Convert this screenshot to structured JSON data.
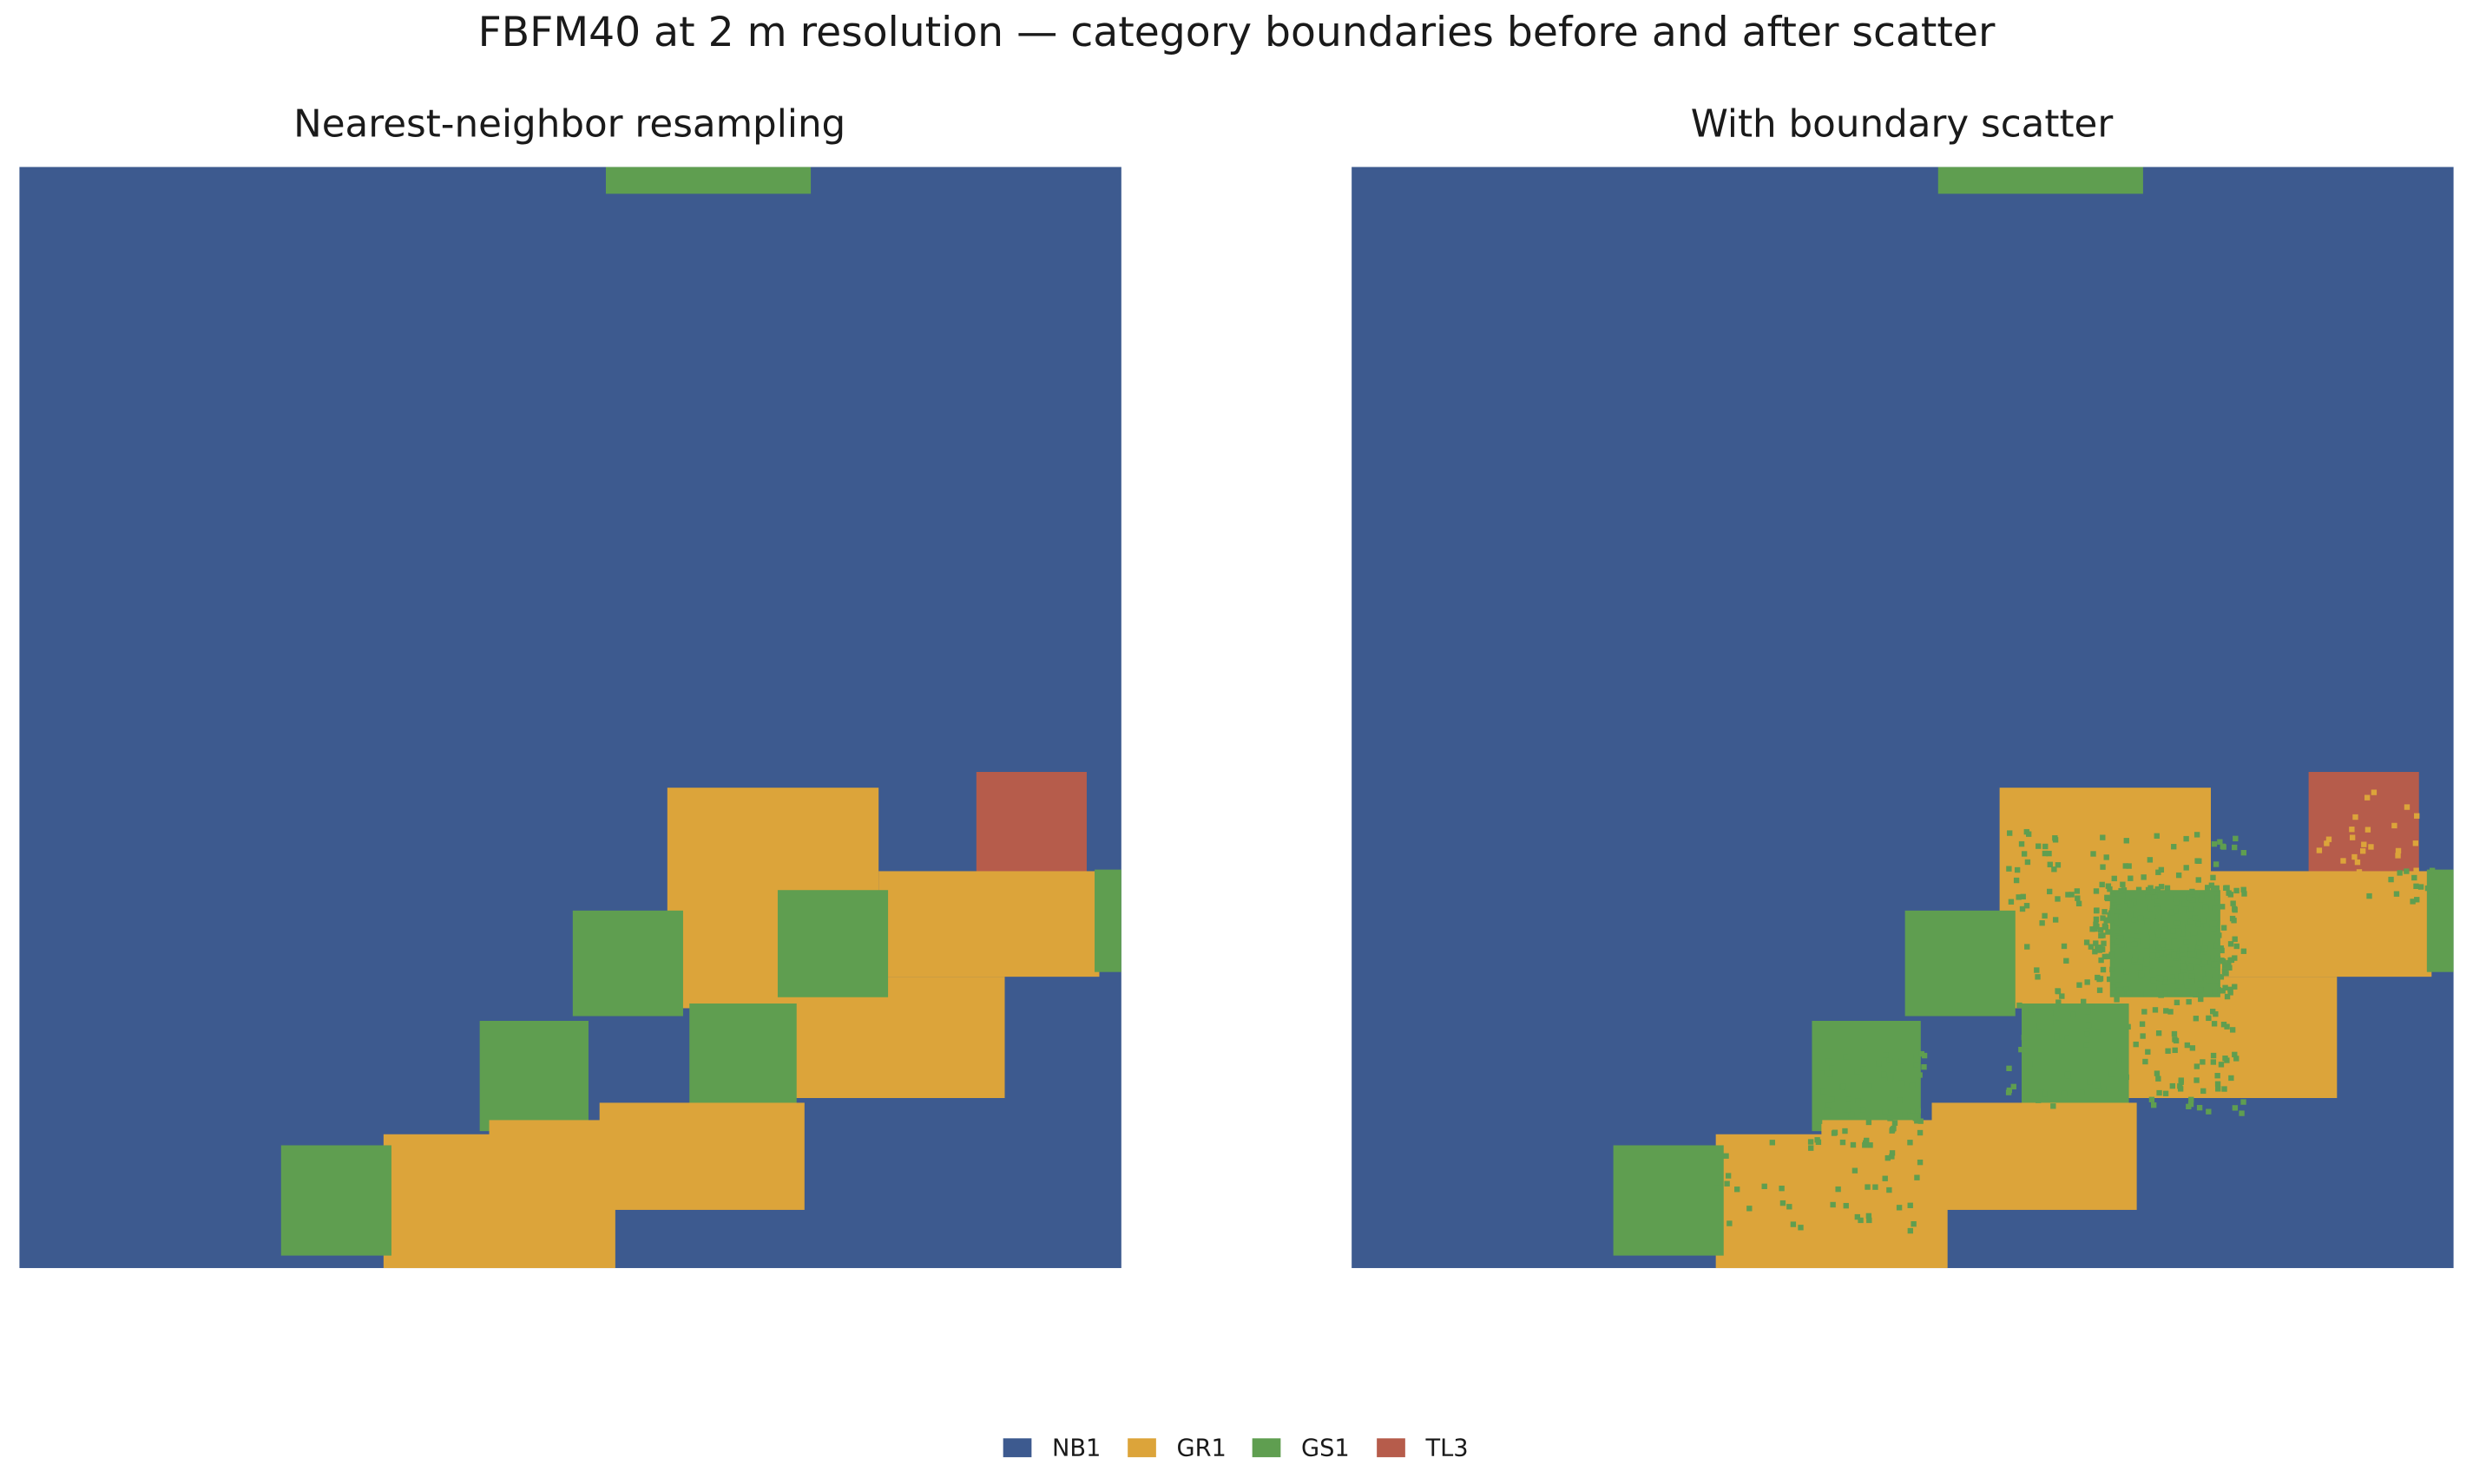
{
  "title": "FBFM40 at 2 m resolution — category boundaries before and after scatter",
  "panels": [
    {
      "title": "Nearest-neighbor resampling"
    },
    {
      "title": "With boundary scatter"
    }
  ],
  "legend": [
    {
      "name": "NB1",
      "color": "#3d5a8f"
    },
    {
      "name": "GR1",
      "color": "#dca43a"
    },
    {
      "name": "GS1",
      "color": "#5f9e50"
    },
    {
      "name": "TL3",
      "color": "#b65c4b"
    }
  ]
}
